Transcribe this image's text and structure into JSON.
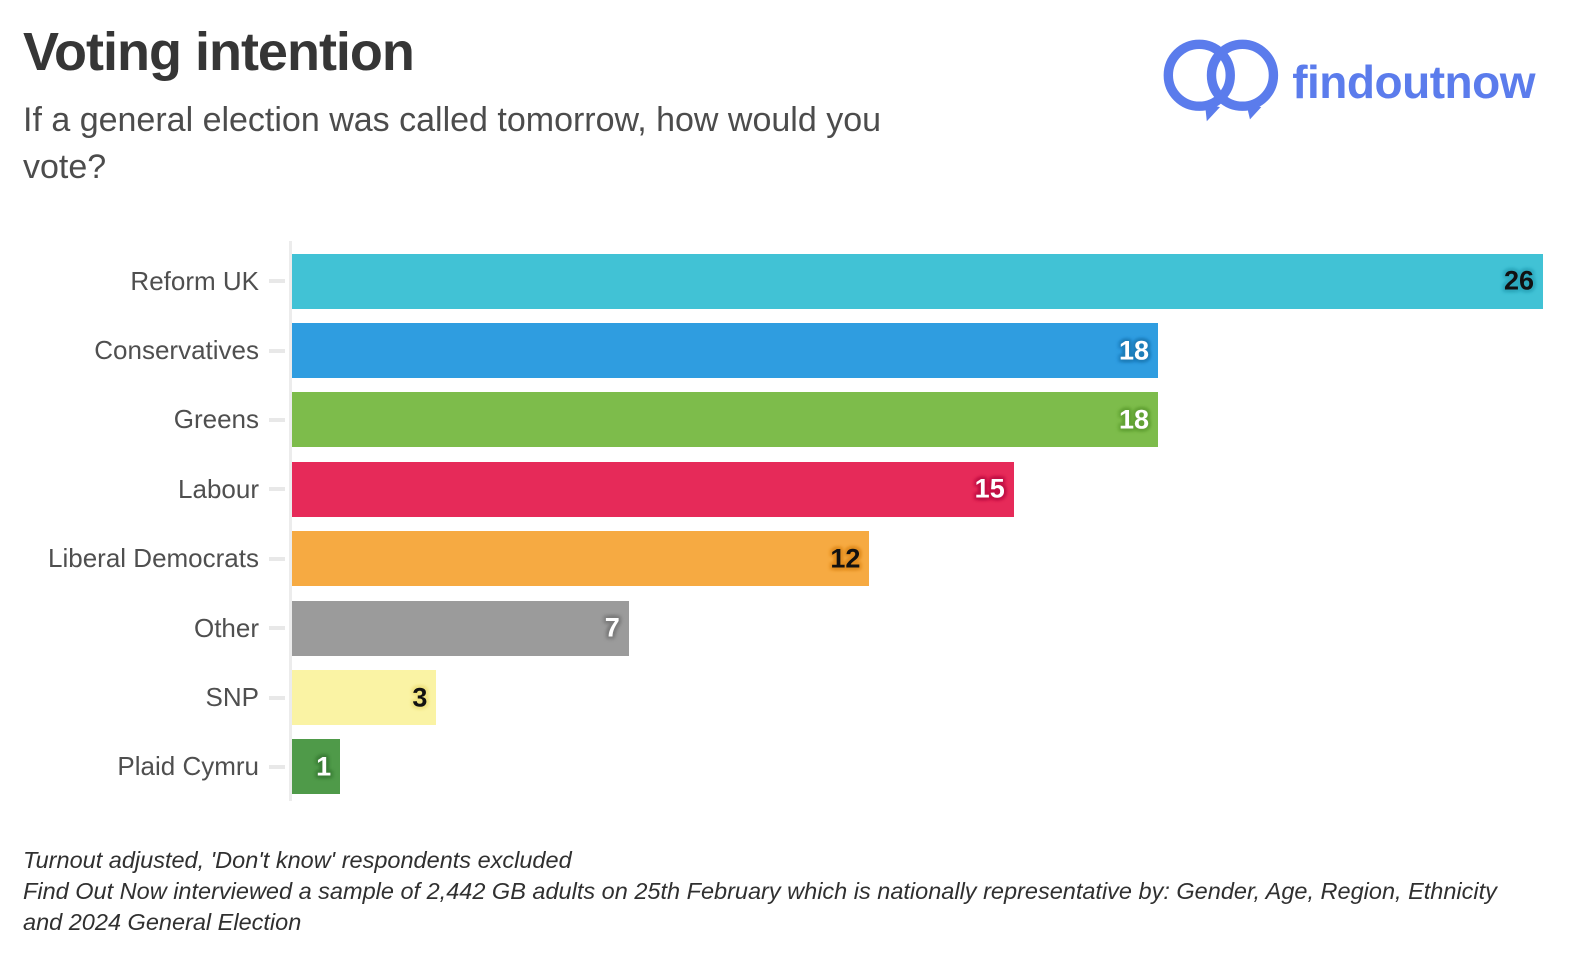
{
  "header": {
    "title": "Voting intention",
    "subtitle_lines": [
      "If a general election was called tomorrow, how would you",
      "vote?"
    ],
    "logo_text": "findoutnow",
    "logo_color": "#5b7cec"
  },
  "chart_data": {
    "type": "bar",
    "orientation": "horizontal",
    "title": "Voting intention",
    "subtitle": "If a general election was called tomorrow, how would you vote?",
    "categories": [
      "Reform UK",
      "Conservatives",
      "Greens",
      "Labour",
      "Liberal Democrats",
      "Other",
      "SNP",
      "Plaid Cymru"
    ],
    "values": [
      26,
      18,
      18,
      15,
      12,
      7,
      3,
      1
    ],
    "unit": "percent",
    "xlim": [
      0,
      26
    ],
    "grid": false,
    "legend": "none",
    "bar_colors": [
      "#41c2d5",
      "#2f9de0",
      "#7dbc4b",
      "#e62a59",
      "#f6aa42",
      "#9b9b9b",
      "#faf3a4",
      "#4f9a49"
    ],
    "value_text_colors": [
      "#111111",
      "#ffffff",
      "#ffffff",
      "#ffffff",
      "#111111",
      "#ffffff",
      "#111111",
      "#ffffff"
    ],
    "value_halo_colors": [
      "#2fa9bd",
      "#1f7eb9",
      "#63a236",
      "#c11246",
      "#e18e22",
      "#7d7d7d",
      "#efe382",
      "#3c7e38"
    ],
    "axis_color": "#ececec",
    "tick_color": "#e8e8e8",
    "label_color": "#4f4f4f"
  },
  "footer": {
    "lines": [
      "Turnout adjusted, 'Don't know' respondents excluded",
      "Find Out Now interviewed a sample of 2,442 GB adults on 25th February which is nationally representative by: Gender, Age, Region, Ethnicity",
      "and 2024 General Election"
    ]
  }
}
